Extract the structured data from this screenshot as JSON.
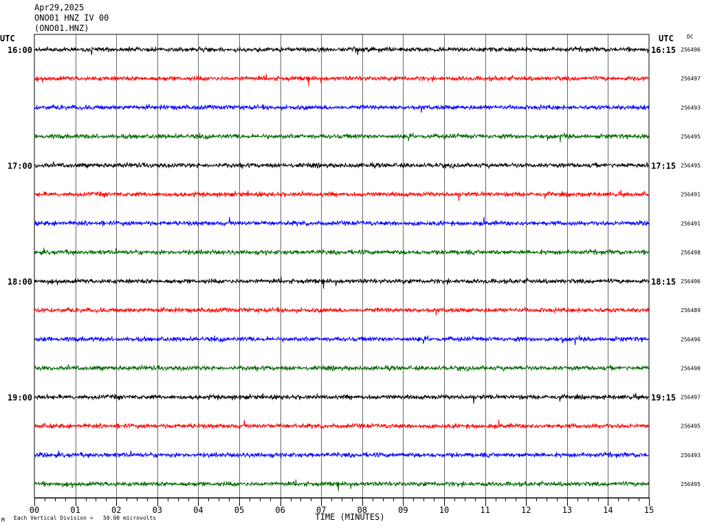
{
  "header": {
    "date": "Apr29,2025",
    "station": "ONO01 HNZ IV 00",
    "channel": "(ONO01.HNZ)"
  },
  "labels": {
    "left_utc": "UTC",
    "right_utc": "UTC",
    "dc": "DC",
    "xlabel": "TIME (MINUTES)",
    "footer": "Each Vertical Division =   50.00 microvolts",
    "footer_mark": "M"
  },
  "colors": {
    "trace_cycle": [
      "#000000",
      "#ff0000",
      "#0000ff",
      "#006600"
    ],
    "grid": "#000000",
    "background": "#ffffff"
  },
  "chart_data": {
    "type": "line",
    "title": "",
    "xlabel": "TIME (MINUTES)",
    "ylabel": "",
    "xlim": [
      0,
      15
    ],
    "x_ticks": [
      "00",
      "01",
      "02",
      "03",
      "04",
      "05",
      "06",
      "07",
      "08",
      "09",
      "10",
      "11",
      "12",
      "13",
      "14",
      "15"
    ],
    "grid": true,
    "rows": [
      {
        "left": "16:00",
        "right": "16:15",
        "dc": "256496",
        "color_index": 0
      },
      {
        "left": "",
        "right": "",
        "dc": "256497",
        "color_index": 1
      },
      {
        "left": "",
        "right": "",
        "dc": "256493",
        "color_index": 2
      },
      {
        "left": "",
        "right": "",
        "dc": "256495",
        "color_index": 3
      },
      {
        "left": "17:00",
        "right": "17:15",
        "dc": "256495",
        "color_index": 0
      },
      {
        "left": "",
        "right": "",
        "dc": "256491",
        "color_index": 1
      },
      {
        "left": "",
        "right": "",
        "dc": "256491",
        "color_index": 2
      },
      {
        "left": "",
        "right": "",
        "dc": "256498",
        "color_index": 3
      },
      {
        "left": "18:00",
        "right": "18:15",
        "dc": "256496",
        "color_index": 0
      },
      {
        "left": "",
        "right": "",
        "dc": "256489",
        "color_index": 1
      },
      {
        "left": "",
        "right": "",
        "dc": "256496",
        "color_index": 2
      },
      {
        "left": "",
        "right": "",
        "dc": "256490",
        "color_index": 3
      },
      {
        "left": "19:00",
        "right": "19:15",
        "dc": "256497",
        "color_index": 0
      },
      {
        "left": "",
        "right": "",
        "dc": "256495",
        "color_index": 1
      },
      {
        "left": "",
        "right": "",
        "dc": "256493",
        "color_index": 2
      },
      {
        "left": "",
        "right": "",
        "dc": "256495",
        "color_index": 3
      }
    ]
  }
}
